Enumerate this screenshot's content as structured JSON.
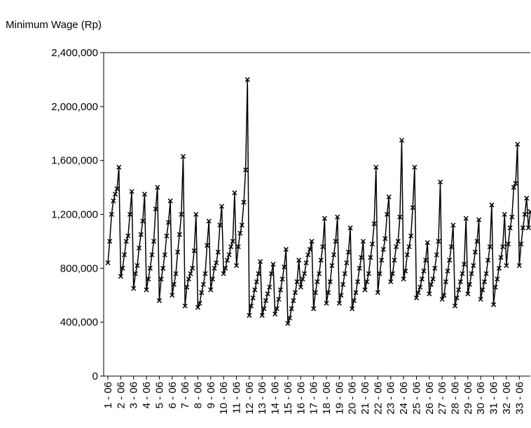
{
  "chart_data": {
    "type": "line",
    "title": "Minimum Wage (Rp)",
    "categories": [
      "1 - 06",
      null,
      null,
      null,
      null,
      null,
      null,
      "2 - 06",
      null,
      null,
      null,
      null,
      null,
      null,
      "3 - 06",
      null,
      null,
      null,
      null,
      null,
      null,
      "4 - 06",
      null,
      null,
      null,
      null,
      null,
      null,
      "5 - 06",
      null,
      null,
      null,
      null,
      null,
      null,
      "6 - 06",
      null,
      null,
      null,
      null,
      null,
      null,
      "7 - 06",
      null,
      null,
      null,
      null,
      null,
      null,
      "8 - 06",
      null,
      null,
      null,
      null,
      null,
      null,
      "9 - 06",
      null,
      null,
      null,
      null,
      null,
      null,
      "10 - 06",
      null,
      null,
      null,
      null,
      null,
      null,
      "11 - 06",
      null,
      null,
      null,
      null,
      null,
      null,
      "12 - 06",
      null,
      null,
      null,
      null,
      null,
      null,
      "13 - 06",
      null,
      null,
      null,
      null,
      null,
      null,
      "14 - 06",
      null,
      null,
      null,
      null,
      null,
      null,
      "15 - 06",
      null,
      null,
      null,
      null,
      null,
      null,
      "16 - 06",
      null,
      null,
      null,
      null,
      null,
      null,
      "17 - 06",
      null,
      null,
      null,
      null,
      null,
      null,
      "18 - 06",
      null,
      null,
      null,
      null,
      null,
      null,
      "19 - 06",
      null,
      null,
      null,
      null,
      null,
      null,
      "20 - 06",
      null,
      null,
      null,
      null,
      null,
      null,
      "21 - 06",
      null,
      null,
      null,
      null,
      null,
      null,
      "22 - 06",
      null,
      null,
      null,
      null,
      null,
      null,
      "23 - 06",
      null,
      null,
      null,
      null,
      null,
      null,
      "24 - 06",
      null,
      null,
      null,
      null,
      null,
      null,
      "25 - 06",
      null,
      null,
      null,
      null,
      null,
      null,
      "26 - 06",
      null,
      null,
      null,
      null,
      null,
      null,
      "27 - 06",
      null,
      null,
      null,
      null,
      null,
      null,
      "28 - 06",
      null,
      null,
      null,
      null,
      null,
      null,
      "29 - 06",
      null,
      null,
      null,
      null,
      null,
      null,
      "30 - 06",
      null,
      null,
      null,
      null,
      null,
      null,
      "31 - 06",
      null,
      null,
      null,
      null,
      null,
      null,
      "32 - 06",
      null,
      null,
      null,
      null,
      null,
      null,
      "33 - 06",
      null,
      null,
      null,
      null,
      null,
      null
    ],
    "values": [
      840000,
      1000000,
      1200000,
      1300000,
      1350000,
      1390000,
      1550000,
      740000,
      800000,
      900000,
      1000000,
      1040000,
      1200000,
      1370000,
      650000,
      760000,
      820000,
      950000,
      1050000,
      1150000,
      1350000,
      640000,
      720000,
      800000,
      900000,
      1000000,
      1240000,
      1400000,
      560000,
      720000,
      800000,
      900000,
      1040000,
      1140000,
      1300000,
      600000,
      680000,
      760000,
      920000,
      1050000,
      1200000,
      1630000,
      520000,
      660000,
      720000,
      760000,
      800000,
      930000,
      1200000,
      510000,
      540000,
      620000,
      680000,
      760000,
      970000,
      1150000,
      640000,
      720000,
      800000,
      840000,
      920000,
      1120000,
      1260000,
      760000,
      800000,
      860000,
      900000,
      960000,
      1000000,
      1360000,
      820000,
      960000,
      1060000,
      1120000,
      1290000,
      1530000,
      2200000,
      450000,
      520000,
      580000,
      640000,
      700000,
      760000,
      850000,
      450000,
      500000,
      560000,
      610000,
      660000,
      760000,
      830000,
      460000,
      500000,
      570000,
      640000,
      720000,
      810000,
      940000,
      390000,
      430000,
      500000,
      560000,
      620000,
      700000,
      860000,
      660000,
      720000,
      760000,
      840000,
      900000,
      940000,
      1000000,
      500000,
      620000,
      700000,
      760000,
      860000,
      960000,
      1170000,
      540000,
      620000,
      700000,
      820000,
      900000,
      1000000,
      1180000,
      540000,
      600000,
      680000,
      760000,
      840000,
      920000,
      1100000,
      500000,
      560000,
      620000,
      700000,
      800000,
      880000,
      1000000,
      640000,
      700000,
      760000,
      880000,
      980000,
      1130000,
      1550000,
      620000,
      760000,
      860000,
      940000,
      1020000,
      1200000,
      1330000,
      700000,
      760000,
      860000,
      960000,
      1000000,
      1180000,
      1750000,
      720000,
      780000,
      900000,
      960000,
      1040000,
      1250000,
      1550000,
      580000,
      620000,
      660000,
      720000,
      780000,
      860000,
      990000,
      610000,
      680000,
      720000,
      800000,
      900000,
      1000000,
      1440000,
      570000,
      600000,
      700000,
      780000,
      860000,
      960000,
      1120000,
      520000,
      580000,
      640000,
      700000,
      760000,
      830000,
      1170000,
      610000,
      680000,
      760000,
      820000,
      920000,
      1000000,
      1160000,
      570000,
      640000,
      700000,
      760000,
      860000,
      960000,
      1270000,
      530000,
      660000,
      720000,
      800000,
      880000,
      960000,
      1200000,
      820000,
      980000,
      1100000,
      1180000,
      1400000,
      1430000,
      1720000,
      820000,
      980000,
      1100000,
      1200000,
      1320000,
      1100000,
      1220000
    ],
    "color": "#000000",
    "ylim": [
      0,
      2400000
    ],
    "yticks": [
      0,
      {
        "value": 400000,
        "label": "400,000"
      },
      {
        "value": 800000,
        "label": "800,000"
      },
      {
        "value": 1200000,
        "label": "1,200,000"
      },
      {
        "value": 1600000,
        "label": "1,600,000"
      },
      {
        "value": 2000000,
        "label": "2,000,000"
      },
      {
        "value": 2400000,
        "label": "2,400,000"
      }
    ]
  }
}
